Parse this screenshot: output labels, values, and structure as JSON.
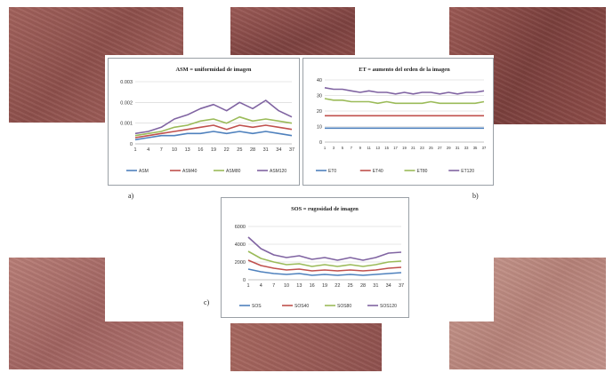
{
  "chart_data": [
    {
      "id": "a",
      "type": "line",
      "title": "ASM = uniformidad de imagen",
      "categories": [
        "1",
        "4",
        "7",
        "10",
        "13",
        "16",
        "19",
        "22",
        "25",
        "28",
        "31",
        "34",
        "37"
      ],
      "ylim": [
        0,
        0.003
      ],
      "yticks": [
        "0",
        "0.001",
        "0.002",
        "0.003"
      ],
      "grid": true,
      "legend_placement": "bottom",
      "series": [
        {
          "name": "ASM",
          "color": "#4f81bd",
          "values": [
            0.0002,
            0.0003,
            0.0004,
            0.0004,
            0.0005,
            0.0005,
            0.0006,
            0.0005,
            0.0006,
            0.0005,
            0.0006,
            0.0005,
            0.0004
          ]
        },
        {
          "name": "ASM40",
          "color": "#c0504d",
          "values": [
            0.0003,
            0.0004,
            0.0005,
            0.0006,
            0.0007,
            0.0008,
            0.0009,
            0.0007,
            0.0009,
            0.0008,
            0.0009,
            0.0008,
            0.0007
          ]
        },
        {
          "name": "ASM80",
          "color": "#9bbb59",
          "values": [
            0.0004,
            0.0005,
            0.0006,
            0.0008,
            0.0009,
            0.0011,
            0.0012,
            0.001,
            0.0013,
            0.0011,
            0.0012,
            0.0011,
            0.001
          ]
        },
        {
          "name": "ASM120",
          "color": "#8064a2",
          "values": [
            0.0005,
            0.0006,
            0.0008,
            0.0012,
            0.0014,
            0.0017,
            0.0019,
            0.0016,
            0.002,
            0.0017,
            0.0021,
            0.0016,
            0.0013
          ]
        }
      ]
    },
    {
      "id": "b",
      "type": "line",
      "title": "ET = aumento del orden de la imagen",
      "categories": [
        "1",
        "3",
        "5",
        "7",
        "9",
        "11",
        "13",
        "15",
        "17",
        "19",
        "21",
        "23",
        "25",
        "27",
        "29",
        "31",
        "33",
        "35",
        "37"
      ],
      "ylim": [
        0,
        40
      ],
      "yticks": [
        "0",
        "10",
        "20",
        "30",
        "40"
      ],
      "grid": true,
      "legend_placement": "bottom",
      "series": [
        {
          "name": "ET0",
          "color": "#4f81bd",
          "values": [
            9,
            9,
            9,
            9,
            9,
            9,
            9,
            9,
            9,
            9,
            9,
            9,
            9,
            9,
            9,
            9,
            9,
            9,
            9
          ]
        },
        {
          "name": "ET40",
          "color": "#c0504d",
          "values": [
            17,
            17,
            17,
            17,
            17,
            17,
            17,
            17,
            17,
            17,
            17,
            17,
            17,
            17,
            17,
            17,
            17,
            17,
            17
          ]
        },
        {
          "name": "ET80",
          "color": "#9bbb59",
          "values": [
            28,
            27,
            27,
            26,
            26,
            26,
            25,
            26,
            25,
            25,
            25,
            25,
            26,
            25,
            25,
            25,
            25,
            25,
            26
          ]
        },
        {
          "name": "ET120",
          "color": "#8064a2",
          "values": [
            35,
            34,
            34,
            33,
            32,
            33,
            32,
            32,
            31,
            32,
            31,
            32,
            32,
            31,
            32,
            31,
            32,
            32,
            33
          ]
        }
      ]
    },
    {
      "id": "c",
      "type": "line",
      "title": "SOS = rugosidad de imagen",
      "categories": [
        "1",
        "4",
        "7",
        "10",
        "13",
        "16",
        "19",
        "22",
        "25",
        "28",
        "31",
        "34",
        "37"
      ],
      "ylim": [
        0,
        6000
      ],
      "yticks": [
        "0",
        "2000",
        "4000",
        "6000"
      ],
      "grid": true,
      "legend_placement": "bottom",
      "series": [
        {
          "name": "SOS",
          "color": "#4f81bd",
          "values": [
            1200,
            900,
            700,
            600,
            700,
            500,
            600,
            500,
            600,
            500,
            600,
            700,
            800
          ]
        },
        {
          "name": "SOS40",
          "color": "#c0504d",
          "values": [
            2200,
            1600,
            1300,
            1100,
            1200,
            1000,
            1100,
            1000,
            1100,
            1000,
            1100,
            1300,
            1400
          ]
        },
        {
          "name": "SOS80",
          "color": "#9bbb59",
          "values": [
            3200,
            2400,
            2000,
            1700,
            1800,
            1500,
            1700,
            1500,
            1700,
            1500,
            1700,
            2000,
            2100
          ]
        },
        {
          "name": "SOS120",
          "color": "#8064a2",
          "values": [
            4800,
            3500,
            2800,
            2500,
            2700,
            2300,
            2500,
            2200,
            2500,
            2200,
            2500,
            3000,
            3100
          ]
        }
      ]
    }
  ],
  "panel_labels": {
    "a": "a)",
    "b": "b)",
    "c": "c)"
  },
  "photos": [
    "skin-texture",
    "skin-texture",
    "skin-texture",
    "skin-texture",
    "skin-texture",
    "skin-texture"
  ]
}
